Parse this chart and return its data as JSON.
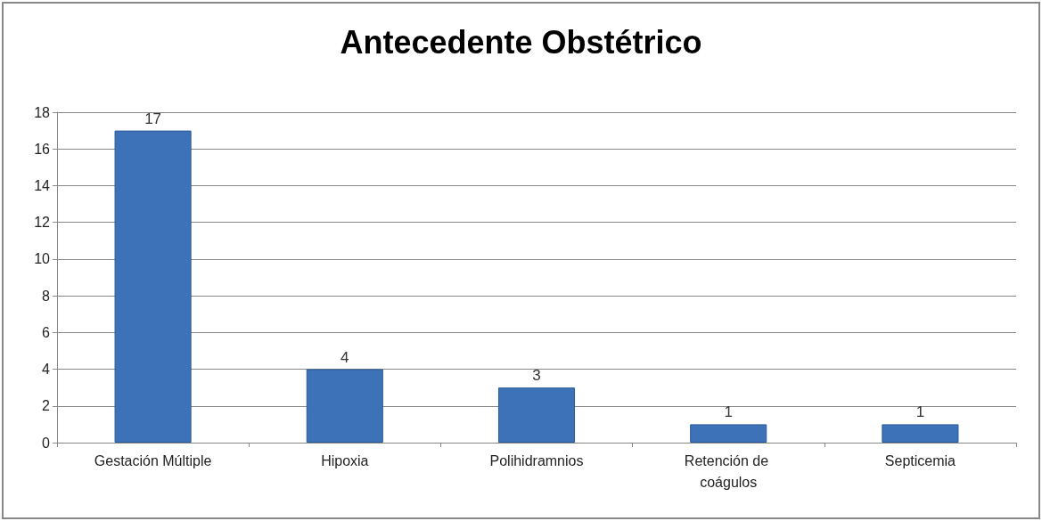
{
  "chart_data": {
    "type": "bar",
    "title": "Antecedente Obstétrico",
    "categories": [
      "Gestación Múltiple",
      "Hipoxia",
      "Polihidramnios",
      "Retención de coágulos",
      "Septicemia"
    ],
    "values": [
      17,
      4,
      3,
      1,
      1
    ],
    "color": "#3d72b8",
    "ylim": [
      0,
      18
    ],
    "yticks": [
      0,
      2,
      4,
      6,
      8,
      10,
      12,
      14,
      16,
      18
    ],
    "grid": "y",
    "data_labels": true
  }
}
